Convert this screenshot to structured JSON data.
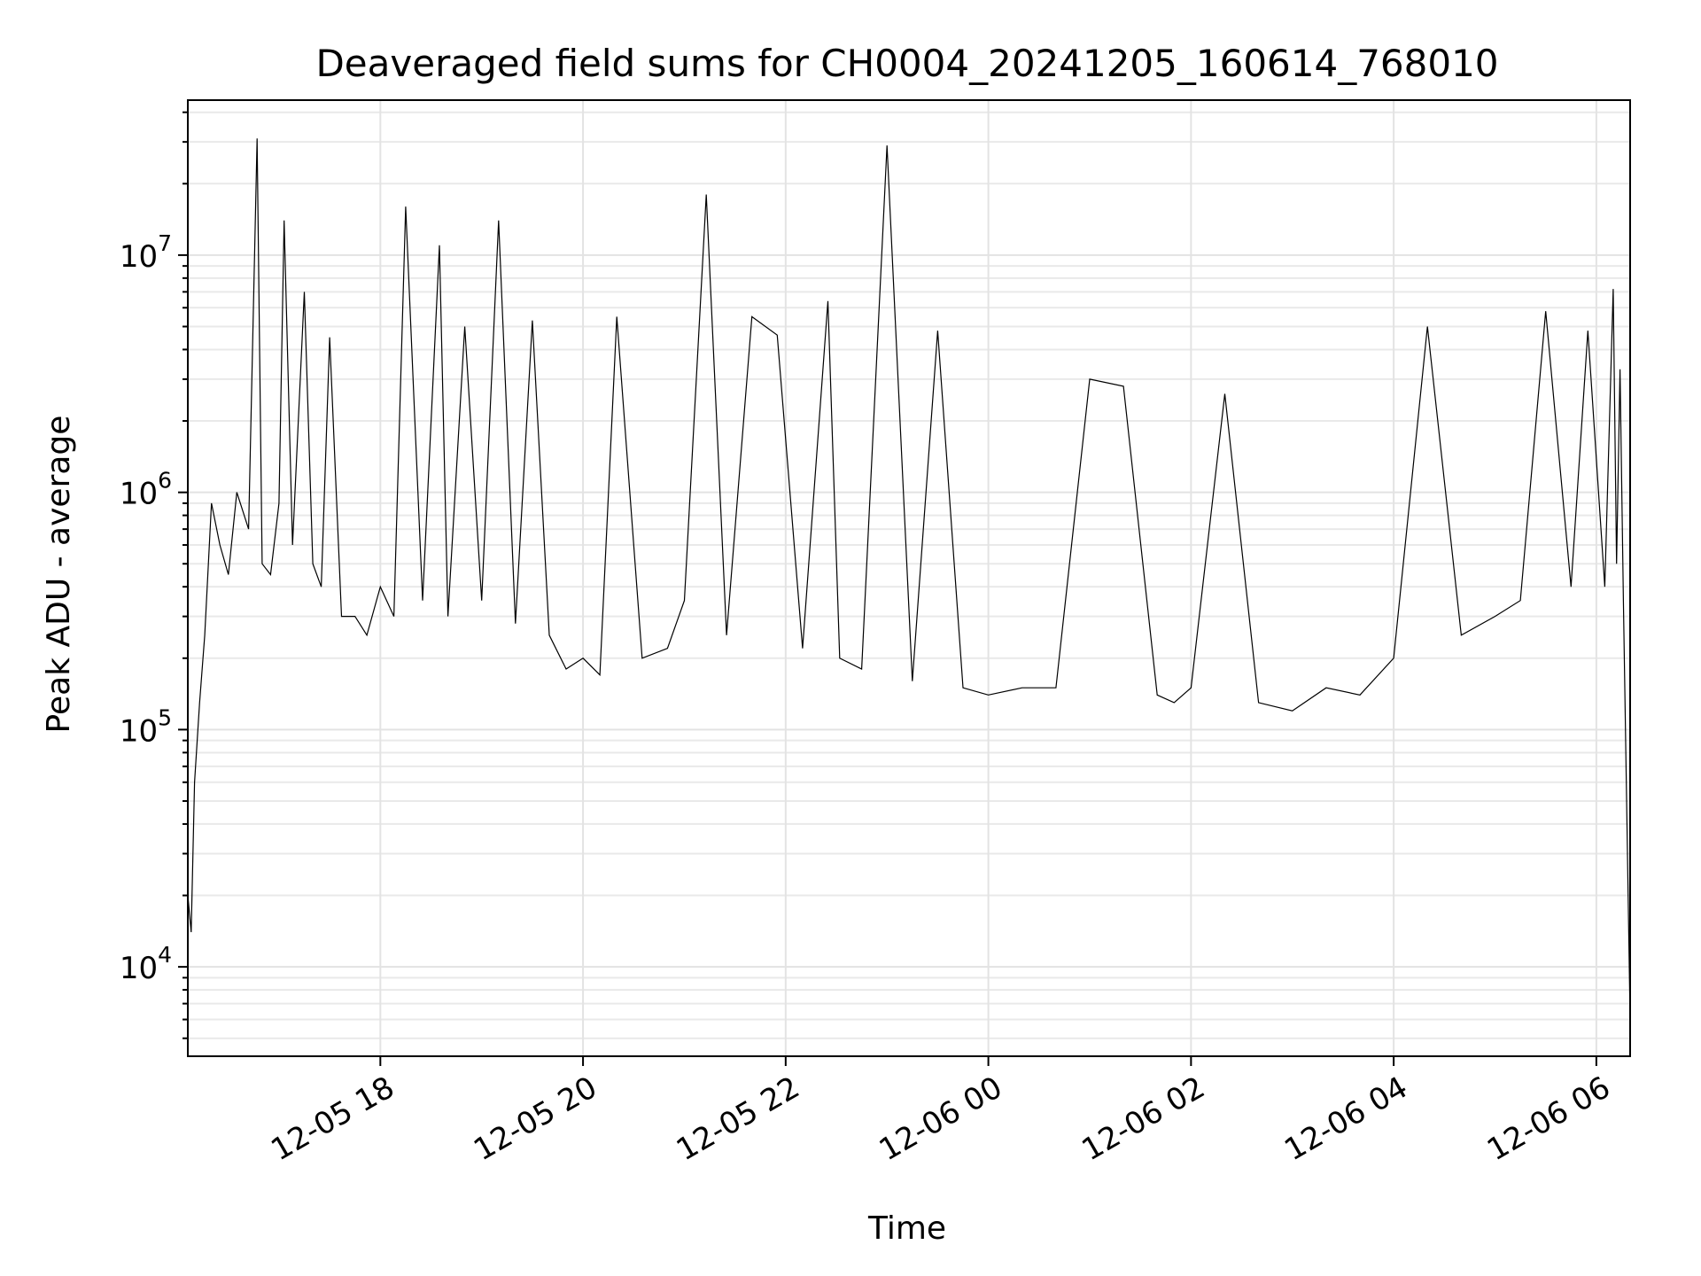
{
  "chart_data": {
    "type": "line",
    "title": "Deaveraged field sums for CH0004_20241205_160614_768010",
    "xlabel": "Time",
    "ylabel": "Peak ADU - average",
    "yscale": "log",
    "xlim": [
      "2024-12-05 16:06",
      "2024-12-06 06:20"
    ],
    "ylim": [
      4200,
      45000000
    ],
    "grid": true,
    "x_ticks": [
      {
        "label": "12-05 18",
        "value": "2024-12-05 18:00"
      },
      {
        "label": "12-05 20",
        "value": "2024-12-05 20:00"
      },
      {
        "label": "12-05 22",
        "value": "2024-12-05 22:00"
      },
      {
        "label": "12-06 00",
        "value": "2024-12-06 00:00"
      },
      {
        "label": "12-06 02",
        "value": "2024-12-06 02:00"
      },
      {
        "label": "12-06 04",
        "value": "2024-12-06 04:00"
      },
      {
        "label": "12-06 06",
        "value": "2024-12-06 06:00"
      }
    ],
    "y_ticks": [
      {
        "base": "10",
        "exp": "4",
        "value": 10000
      },
      {
        "base": "10",
        "exp": "5",
        "value": 100000
      },
      {
        "base": "10",
        "exp": "6",
        "value": 1000000
      },
      {
        "base": "10",
        "exp": "7",
        "value": 10000000
      }
    ],
    "series": [
      {
        "color": "#000000",
        "x": [
          "2024-12-05 16:06",
          "2024-12-05 16:08",
          "2024-12-05 16:10",
          "2024-12-05 16:13",
          "2024-12-05 16:16",
          "2024-12-05 16:20",
          "2024-12-05 16:25",
          "2024-12-05 16:30",
          "2024-12-05 16:35",
          "2024-12-05 16:42",
          "2024-12-05 16:47",
          "2024-12-05 16:50",
          "2024-12-05 16:55",
          "2024-12-05 17:00",
          "2024-12-05 17:03",
          "2024-12-05 17:08",
          "2024-12-05 17:15",
          "2024-12-05 17:20",
          "2024-12-05 17:25",
          "2024-12-05 17:30",
          "2024-12-05 17:37",
          "2024-12-05 17:45",
          "2024-12-05 17:52",
          "2024-12-05 18:00",
          "2024-12-05 18:08",
          "2024-12-05 18:15",
          "2024-12-05 18:25",
          "2024-12-05 18:35",
          "2024-12-05 18:40",
          "2024-12-05 18:50",
          "2024-12-05 19:00",
          "2024-12-05 19:10",
          "2024-12-05 19:20",
          "2024-12-05 19:30",
          "2024-12-05 19:40",
          "2024-12-05 19:50",
          "2024-12-05 20:00",
          "2024-12-05 20:10",
          "2024-12-05 20:20",
          "2024-12-05 20:35",
          "2024-12-05 20:50",
          "2024-12-05 21:00",
          "2024-12-05 21:13",
          "2024-12-05 21:25",
          "2024-12-05 21:40",
          "2024-12-05 21:55",
          "2024-12-05 22:10",
          "2024-12-05 22:25",
          "2024-12-05 22:32",
          "2024-12-05 22:45",
          "2024-12-05 23:00",
          "2024-12-05 23:15",
          "2024-12-05 23:30",
          "2024-12-05 23:45",
          "2024-12-06 00:00",
          "2024-12-06 00:20",
          "2024-12-06 00:40",
          "2024-12-06 01:00",
          "2024-12-06 01:20",
          "2024-12-06 01:40",
          "2024-12-06 01:50",
          "2024-12-06 02:00",
          "2024-12-06 02:20",
          "2024-12-06 02:40",
          "2024-12-06 03:00",
          "2024-12-06 03:20",
          "2024-12-06 03:40",
          "2024-12-06 04:00",
          "2024-12-06 04:20",
          "2024-12-06 04:40",
          "2024-12-06 05:00",
          "2024-12-06 05:15",
          "2024-12-06 05:30",
          "2024-12-06 05:45",
          "2024-12-06 05:55",
          "2024-12-06 06:05",
          "2024-12-06 06:10",
          "2024-12-06 06:12",
          "2024-12-06 06:14",
          "2024-12-06 06:16",
          "2024-12-06 06:20"
        ],
        "y": [
          20000,
          14000,
          60000,
          130000,
          250000,
          900000,
          600000,
          450000,
          1000000,
          700000,
          31000000,
          500000,
          450000,
          900000,
          14000000,
          600000,
          7000000,
          500000,
          400000,
          4500000,
          300000,
          300000,
          250000,
          400000,
          300000,
          16000000,
          350000,
          11000000,
          300000,
          5000000,
          350000,
          14000000,
          280000,
          5300000,
          250000,
          180000,
          200000,
          170000,
          5500000,
          200000,
          220000,
          350000,
          18000000,
          250000,
          5500000,
          4600000,
          220000,
          6400000,
          200000,
          180000,
          29000000,
          160000,
          4800000,
          150000,
          140000,
          150000,
          150000,
          3000000,
          2800000,
          140000,
          130000,
          150000,
          2600000,
          130000,
          120000,
          150000,
          140000,
          200000,
          5000000,
          250000,
          300000,
          350000,
          5800000,
          400000,
          4800000,
          400000,
          7200000,
          500000,
          3300000,
          350000,
          6000
        ]
      }
    ]
  }
}
